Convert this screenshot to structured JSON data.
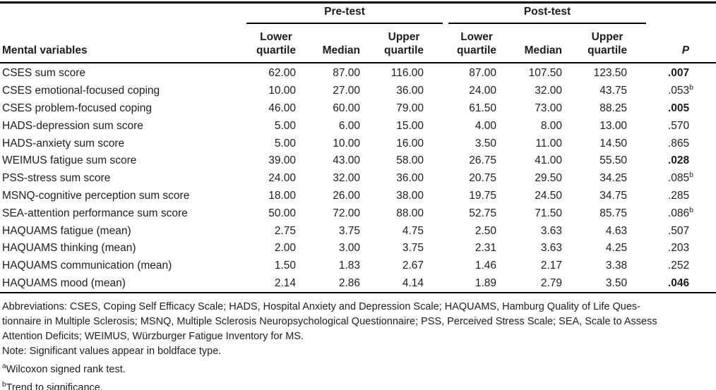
{
  "table": {
    "groups": {
      "pre": "Pre-test",
      "post": "Post-test"
    },
    "headers": {
      "mental_variables": "Mental variables",
      "lower_line1": "Lower",
      "lower_line2": "quartile",
      "median": "Median",
      "upper_line1": "Upper",
      "upper_line2": "quartile",
      "p": "P"
    },
    "rows": [
      {
        "label": "CSES sum score",
        "pre": [
          "62.00",
          "87.00",
          "116.00"
        ],
        "post": [
          "87.00",
          "107.50",
          "123.50"
        ],
        "p": ".007",
        "p_sup": "",
        "p_bold": true
      },
      {
        "label": "CSES emotional-focused coping",
        "pre": [
          "10.00",
          "27.00",
          "36.00"
        ],
        "post": [
          "24.00",
          "32.00",
          "43.75"
        ],
        "p": ".053",
        "p_sup": "b",
        "p_bold": false
      },
      {
        "label": "CSES problem-focused coping",
        "pre": [
          "46.00",
          "60.00",
          "79.00"
        ],
        "post": [
          "61.50",
          "73.00",
          "88.25"
        ],
        "p": ".005",
        "p_sup": "",
        "p_bold": true
      },
      {
        "label": "HADS-depression sum score",
        "pre": [
          "5.00",
          "6.00",
          "15.00"
        ],
        "post": [
          "4.00",
          "8.00",
          "13.00"
        ],
        "p": ".570",
        "p_sup": "",
        "p_bold": false
      },
      {
        "label": "HADS-anxiety sum score",
        "pre": [
          "5.00",
          "10.00",
          "16.00"
        ],
        "post": [
          "3.50",
          "11.00",
          "14.50"
        ],
        "p": ".865",
        "p_sup": "",
        "p_bold": false
      },
      {
        "label": "WEIMUS fatigue sum score",
        "pre": [
          "39.00",
          "43.00",
          "58.00"
        ],
        "post": [
          "26.75",
          "41.00",
          "55.50"
        ],
        "p": ".028",
        "p_sup": "",
        "p_bold": true
      },
      {
        "label": "PSS-stress sum score",
        "pre": [
          "24.00",
          "32.00",
          "36.00"
        ],
        "post": [
          "20.75",
          "29.50",
          "34.25"
        ],
        "p": ".085",
        "p_sup": "b",
        "p_bold": false
      },
      {
        "label": "MSNQ-cognitive perception sum score",
        "pre": [
          "18.00",
          "26.00",
          "38.00"
        ],
        "post": [
          "19.75",
          "24.50",
          "34.75"
        ],
        "p": ".285",
        "p_sup": "",
        "p_bold": false
      },
      {
        "label": "SEA-attention performance sum score",
        "pre": [
          "50.00",
          "72.00",
          "88.00"
        ],
        "post": [
          "52.75",
          "71.50",
          "85.75"
        ],
        "p": ".086",
        "p_sup": "b",
        "p_bold": false
      },
      {
        "label": "HAQUAMS fatigue (mean)",
        "pre": [
          "2.75",
          "3.75",
          "4.75"
        ],
        "post": [
          "2.50",
          "3.63",
          "4.63"
        ],
        "p": ".507",
        "p_sup": "",
        "p_bold": false
      },
      {
        "label": "HAQUAMS thinking (mean)",
        "pre": [
          "2.00",
          "3.00",
          "3.75"
        ],
        "post": [
          "2.31",
          "3.63",
          "4.25"
        ],
        "p": ".203",
        "p_sup": "",
        "p_bold": false
      },
      {
        "label": "HAQUAMS communication (mean)",
        "pre": [
          "1.50",
          "1.83",
          "2.67"
        ],
        "post": [
          "1.46",
          "2.17",
          "3.38"
        ],
        "p": ".252",
        "p_sup": "",
        "p_bold": false
      },
      {
        "label": "HAQUAMS mood (mean)",
        "pre": [
          "2.14",
          "2.86",
          "4.14"
        ],
        "post": [
          "1.89",
          "2.79",
          "3.50"
        ],
        "p": ".046",
        "p_sup": "",
        "p_bold": true
      }
    ]
  },
  "footnotes": {
    "abbrev_line1": "Abbreviations: CSES, Coping Self Efficacy Scale; HADS, Hospital Anxiety and Depression Scale; HAQUAMS, Hamburg Quality of Life Ques-",
    "abbrev_line2": "tionnaire in Multiple Sclerosis; MSNQ, Multiple Sclerosis Neuropsychological Questionnaire; PSS, Perceived Stress Scale; SEA, Scale to Assess",
    "abbrev_line3": "Attention Deficits; WEIMUS, Würzburger Fatigue Inventory for MS.",
    "note": "Note: Significant values appear in boldface type.",
    "fn_a_marker": "a",
    "fn_a_text": "Wilcoxon signed rank test.",
    "fn_b_marker": "b",
    "fn_b_text": "Trend to significance."
  }
}
